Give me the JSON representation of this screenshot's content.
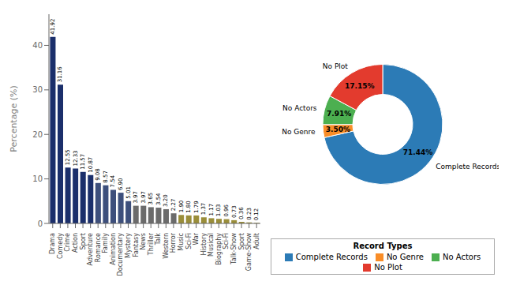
{
  "chart_data": [
    {
      "type": "bar",
      "ylabel": "Percentage (%)",
      "categories": [
        "Drama",
        "Comedy",
        "Crime",
        "Action",
        "Sport",
        "Adventure",
        "Romance",
        "Family",
        "Animation",
        "Documentary",
        "Mystery",
        "Fantasy",
        "News",
        "Thriller",
        "Talk",
        "Western",
        "Horror",
        "Music",
        "Sci-Fi",
        "War",
        "History",
        "Musical",
        "Biography",
        "Sci-Fi",
        "Talk-Show",
        "Sport",
        "Game-Show",
        "Adult"
      ],
      "values": [
        41.92,
        31.16,
        12.55,
        12.33,
        11.57,
        10.87,
        9.08,
        8.57,
        7.54,
        6.9,
        5.01,
        3.97,
        3.97,
        3.65,
        3.54,
        3.2,
        2.27,
        1.9,
        1.8,
        1.79,
        1.37,
        1.17,
        1.03,
        0.96,
        0.73,
        0.36,
        0.23,
        0.12
      ],
      "value_labels": [
        "41.92",
        "31.16",
        "12.55",
        "12.33",
        "11.57",
        "10.87",
        "9.08",
        "8.57",
        "7.54",
        "6.90",
        "5.01",
        "3.97",
        "3.97",
        "3.65",
        "3.54",
        "3.20",
        "2.27",
        "1.90",
        "1.80",
        "1.79",
        "1.37",
        "1.17",
        "1.03",
        "0.96",
        "0.73",
        "0.36",
        "0.23",
        "0.12"
      ],
      "colors": [
        "#1b2f6b",
        "#1b2f6b",
        "#1b2f6b",
        "#1b2f6b",
        "#1b2f6b",
        "#1b2f6b",
        "#3d4f7c",
        "#3d4f7c",
        "#3d4f7c",
        "#3d4f7c",
        "#3d4f7c",
        "#6b6b6b",
        "#6b6b6b",
        "#6b6b6b",
        "#6b6b6b",
        "#6b6b6b",
        "#6b6b6b",
        "#9a8e3a",
        "#9a8e3a",
        "#9a8e3a",
        "#9a8e3a",
        "#9a8e3a",
        "#9a8e3a",
        "#9a8e3a",
        "#9a8e3a",
        "#9a8e3a",
        "#9a8e3a",
        "#9a8e3a"
      ],
      "ylim": [
        0,
        47
      ],
      "yticks": [
        0,
        10,
        20,
        30,
        40
      ],
      "grid": false,
      "data_labels": true
    },
    {
      "type": "pie",
      "categories": [
        "Complete Records",
        "No Genre",
        "No Actors",
        "No Plot"
      ],
      "values": [
        71.44,
        3.5,
        7.91,
        17.15
      ],
      "value_labels": [
        "71.44%",
        "3.50%",
        "7.91%",
        "17.15%"
      ],
      "colors": [
        "#2c7bb6",
        "#f98d28",
        "#4caf50",
        "#e33b2e"
      ],
      "legend_title": "Record Types",
      "legend": "bottom",
      "data_labels": true
    }
  ]
}
